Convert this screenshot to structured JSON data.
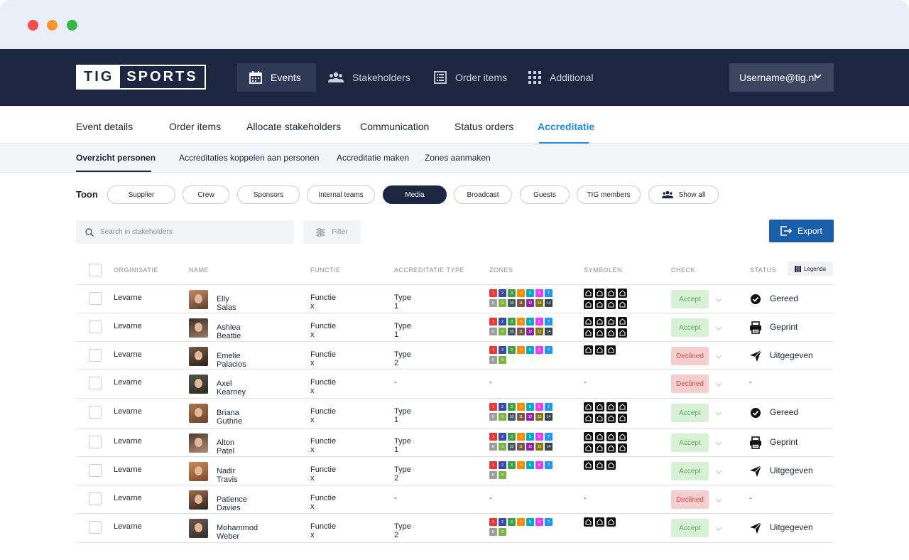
{
  "brand": {
    "logo_left": "TIG",
    "logo_right": "SPORTS"
  },
  "top_nav": [
    {
      "label": "Events",
      "icon": "calendar-icon",
      "active": true
    },
    {
      "label": "Stakeholders",
      "icon": "users-icon",
      "active": false
    },
    {
      "label": "Order items",
      "icon": "list-icon",
      "active": false
    },
    {
      "label": "Additional",
      "icon": "grid-icon",
      "active": false
    }
  ],
  "user": {
    "label": "Username@tig.nl"
  },
  "tabs": [
    "Event details",
    "Order items",
    "Allocate stakeholders",
    "Communication",
    "Status orders",
    "Accreditatie"
  ],
  "active_tab": "Accreditatie",
  "subtabs": [
    "Overzicht personen",
    "Accreditaties koppelen aan personen",
    "Accreditatie maken",
    "Zones aanmaken"
  ],
  "active_subtab": "Overzicht personen",
  "filters": {
    "label": "Toon",
    "pills": [
      "Supplier",
      "Crew",
      "Sponsors",
      "Internal teams",
      "Media",
      "Broadcast",
      "Guests",
      "TIG members",
      "Show all"
    ],
    "active": "Media"
  },
  "search": {
    "placeholder": "Search in stakeholders"
  },
  "filter_button": "Filter",
  "export_button": "Export",
  "table": {
    "headers": [
      "ORGINISATIE",
      "NAME",
      "FUNCTIE",
      "ACCREDITATIE TYPE",
      "ZONES",
      "SYMBOLEN",
      "CHECK",
      "STATUS"
    ],
    "legenda": "Legenda",
    "rows": [
      {
        "org": "Levarne",
        "name": "Elly Salas",
        "functie": "Functie x",
        "type": "Type 1",
        "zones": 14,
        "symbols": 8,
        "check": "Accept",
        "status": "Gereed",
        "status_icon": "check-circle-icon"
      },
      {
        "org": "Levarne",
        "name": "Ashlea Beattie",
        "functie": "Functie x",
        "type": "Type 1",
        "zones": 14,
        "symbols": 8,
        "check": "Accept",
        "status": "Geprint",
        "status_icon": "printer-icon"
      },
      {
        "org": "Levarne",
        "name": "Emelie Palacios",
        "functie": "Functie x",
        "type": "Type 2",
        "zones": 9,
        "symbols": 3,
        "check": "Declined",
        "status": "Uitgegeven",
        "status_icon": "send-icon"
      },
      {
        "org": "Levarne",
        "name": "Axel Kearney",
        "functie": "Functie x",
        "type": "-",
        "zones": 0,
        "symbols": 0,
        "check": "Declined",
        "status": "-",
        "status_icon": ""
      },
      {
        "org": "Levarne",
        "name": "Briana Guthrie",
        "functie": "Functie x",
        "type": "Type 1",
        "zones": 14,
        "symbols": 8,
        "check": "Accept",
        "status": "Gereed",
        "status_icon": "check-circle-icon"
      },
      {
        "org": "Levarne",
        "name": "Alton Patel",
        "functie": "Functie x",
        "type": "Type 1",
        "zones": 14,
        "symbols": 8,
        "check": "Accept",
        "status": "Geprint",
        "status_icon": "printer-icon"
      },
      {
        "org": "Levarne",
        "name": "Nadir Travis",
        "functie": "Functie x",
        "type": "Type 2",
        "zones": 9,
        "symbols": 3,
        "check": "Accept",
        "status": "Uitgegeven",
        "status_icon": "send-icon"
      },
      {
        "org": "Levarne",
        "name": "Patience Davies",
        "functie": "Functie x",
        "type": "-",
        "zones": 0,
        "symbols": 0,
        "check": "Declined",
        "status": "-",
        "status_icon": ""
      },
      {
        "org": "Levarne",
        "name": "Mohammod Weber",
        "functie": "Functie x",
        "type": "Type 2",
        "zones": 9,
        "symbols": 3,
        "check": "Accept",
        "status": "Uitgegeven",
        "status_icon": "send-icon"
      }
    ]
  },
  "zone_colors": [
    "#e53935",
    "#3949ab",
    "#43a047",
    "#fb8c00",
    "#00acc1",
    "#e040fb",
    "#2196f3",
    "#9e9e9e",
    "#7cb342",
    "#455a64",
    "#795548",
    "#8e24aa",
    "#827717",
    "#37474f"
  ],
  "colors": {
    "navy": "#1c2641",
    "accent": "#1e8ad8",
    "export": "#1a5da8"
  }
}
